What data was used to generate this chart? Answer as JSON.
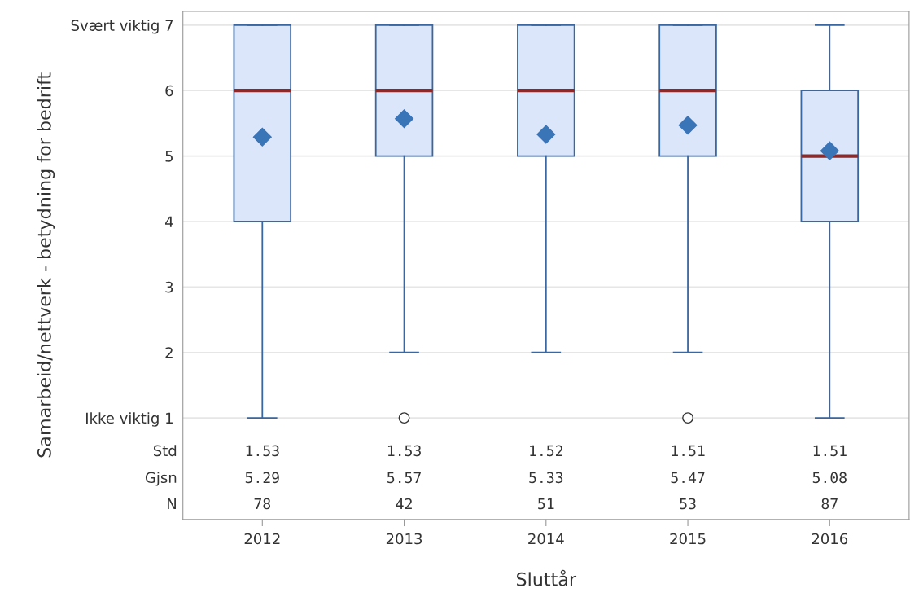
{
  "chart_data": {
    "type": "box",
    "xlabel": "Sluttår",
    "ylabel": "Samarbeid/nettverk - betydning for bedrift",
    "categories": [
      "2012",
      "2013",
      "2014",
      "2015",
      "2016"
    ],
    "series": [
      {
        "color": "#3a67a0",
        "boxes": [
          {
            "low": 1,
            "q1": 4,
            "median": 6,
            "q3": 7,
            "high": 7,
            "mean": 5.29
          },
          {
            "low": 2,
            "q1": 5,
            "median": 6,
            "q3": 7,
            "high": 7,
            "mean": 5.57,
            "outliers": [
              1
            ]
          },
          {
            "low": 2,
            "q1": 5,
            "median": 6,
            "q3": 7,
            "high": 7,
            "mean": 5.33
          },
          {
            "low": 2,
            "q1": 5,
            "median": 6,
            "q3": 7,
            "high": 7,
            "mean": 5.47,
            "outliers": [
              1
            ]
          },
          {
            "low": 1,
            "q1": 4,
            "median": 5,
            "q3": 6,
            "high": 7,
            "mean": 5.08
          }
        ]
      }
    ],
    "ylim": [
      -0.55,
      7.21
    ],
    "yticks": [
      {
        "value": 1,
        "label": "Ikke viktig 1"
      },
      2,
      3,
      4,
      5,
      6,
      {
        "value": 7,
        "label": "Svært viktig 7"
      }
    ],
    "grid": "y",
    "annotations": [
      "Std",
      "1.53",
      "1.53",
      "1.52",
      "1.51",
      "1.51",
      "Gjsn",
      "5.29",
      "5.57",
      "5.33",
      "5.47",
      "5.08",
      "N",
      "78",
      "42",
      "51",
      "53",
      "87"
    ]
  }
}
